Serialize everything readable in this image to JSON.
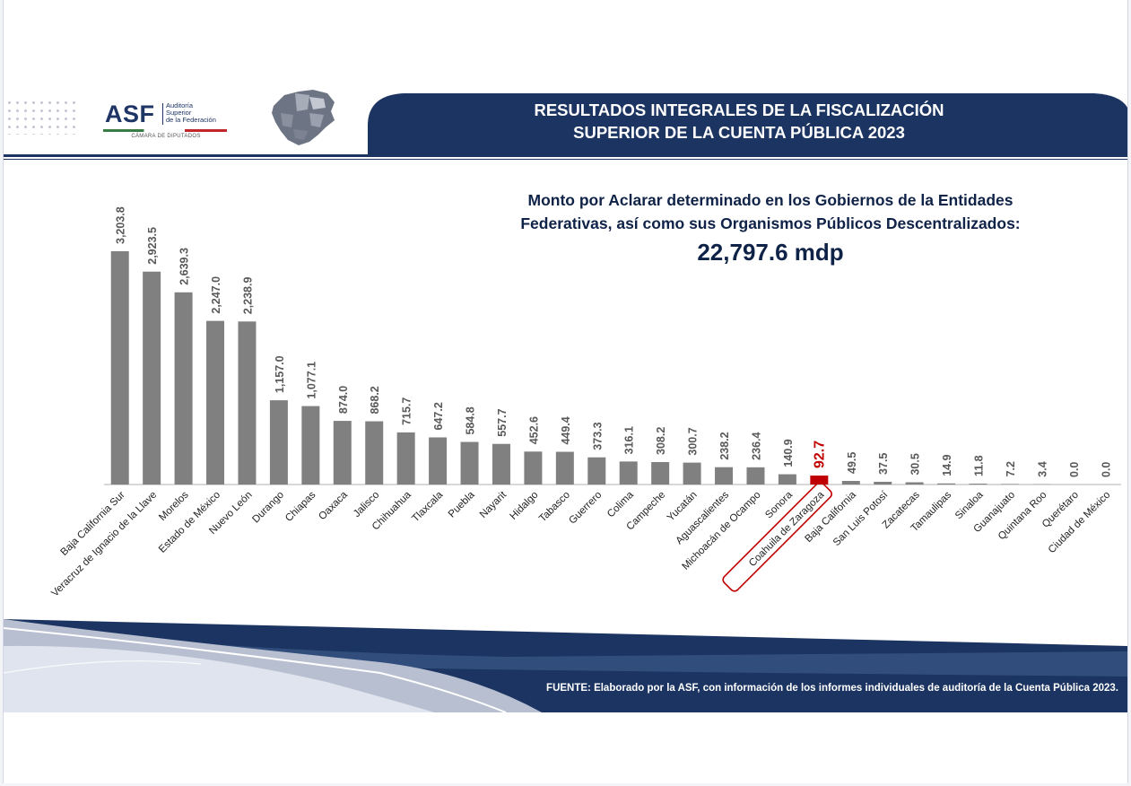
{
  "header": {
    "title_line1": "RESULTADOS INTEGRALES DE LA FISCALIZACIÓN",
    "title_line2": "SUPERIOR DE LA CUENTA PÚBLICA 2023",
    "logo": {
      "mark": "ASF",
      "subtitle_line1": "Auditoría",
      "subtitle_line2": "Superior",
      "subtitle_line3": "de la Federación",
      "caption": "CÁMARA DE DIPUTADOS"
    }
  },
  "subtitle_line1": "Monto por Aclarar determinado en los Gobiernos de la Entidades",
  "subtitle_line2": "Federativas, así como sus Organismos Públicos Descentralizados:",
  "total": "22,797.6 mdp",
  "source": "FUENTE: Elaborado por la ASF, con información de los informes individuales de auditoría de la Cuenta Pública 2023.",
  "colors": {
    "bar": "#808080",
    "highlight": "#c00000",
    "navy": "#1b3461"
  },
  "chart_data": {
    "type": "bar",
    "title": "Monto por Aclarar determinado en los Gobiernos de la Entidades Federativas, así como sus Organismos Públicos Descentralizados: 22,797.6 mdp",
    "categories": [
      "Baja California Sur",
      "Veracruz de Ignacio de la Llave",
      "Morelos",
      "Estado de México",
      "Nuevo León",
      "Durango",
      "Chiapas",
      "Oaxaca",
      "Jalisco",
      "Chihuahua",
      "Tlaxcala",
      "Puebla",
      "Nayarit",
      "Hidalgo",
      "Tabasco",
      "Guerrero",
      "Colima",
      "Campeche",
      "Yucatán",
      "Aguascalientes",
      "Michoacán de Ocampo",
      "Sonora",
      "Coahuila de Zaragoza",
      "Baja California",
      "San Luis Potosí",
      "Zacatecas",
      "Tamaulipas",
      "Sinaloa",
      "Guanajuato",
      "Quintana Roo",
      "Querétaro",
      "Ciudad de México"
    ],
    "values": [
      3203.8,
      2923.5,
      2639.3,
      2247.0,
      2238.9,
      1157.0,
      1077.1,
      874.0,
      868.2,
      715.7,
      647.2,
      584.8,
      557.7,
      452.6,
      449.4,
      373.3,
      316.1,
      308.2,
      300.7,
      238.2,
      236.4,
      140.9,
      92.7,
      49.5,
      37.5,
      30.5,
      14.9,
      11.8,
      7.2,
      3.4,
      0.0,
      0.0
    ],
    "labels": [
      "3,203.8",
      "2,923.5",
      "2,639.3",
      "2,247.0",
      "2,238.9",
      "1,157.0",
      "1,077.1",
      "874.0",
      "868.2",
      "715.7",
      "647.2",
      "584.8",
      "557.7",
      "452.6",
      "449.4",
      "373.3",
      "316.1",
      "308.2",
      "300.7",
      "238.2",
      "236.4",
      "140.9",
      "92.7",
      "49.5",
      "37.5",
      "30.5",
      "14.9",
      "11.8",
      "7.2",
      "3.4",
      "0.0",
      "0.0"
    ],
    "highlight": "Coahuila de Zaragoza",
    "ylim": [
      0,
      3300
    ],
    "grid": false,
    "legend": "none"
  }
}
